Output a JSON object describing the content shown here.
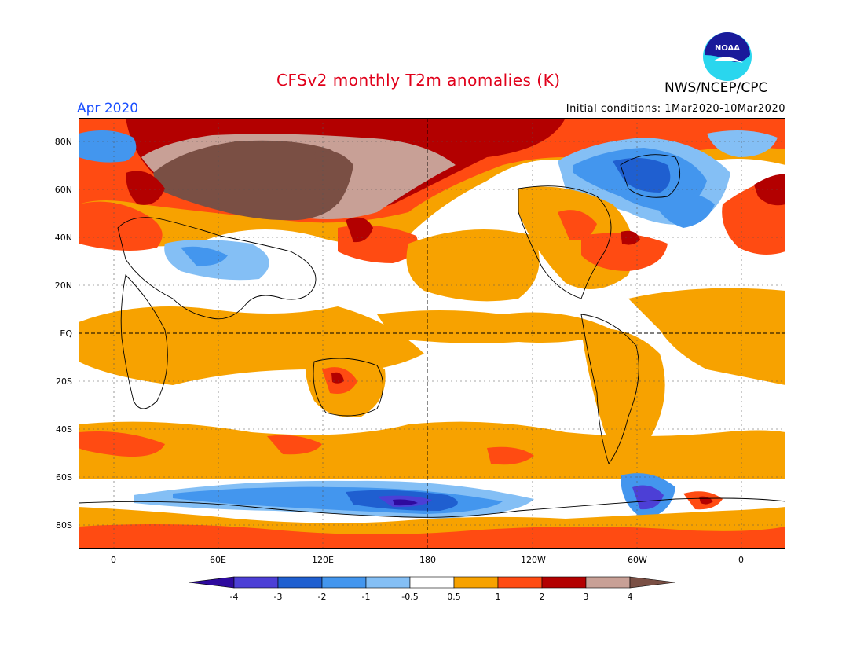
{
  "title": "CFSv2 monthly T2m anomalies (K)",
  "month": "Apr 2020",
  "agency": "NWS/NCEP/CPC",
  "logo_text": "NOAA",
  "initial_conditions": "Initial conditions: 1Mar2020-10Mar2020",
  "lat_labels": [
    "80N",
    "60N",
    "40N",
    "20N",
    "EQ",
    "20S",
    "40S",
    "60S",
    "80S"
  ],
  "lon_labels": [
    "0",
    "60E",
    "120E",
    "180",
    "120W",
    "60W",
    "0"
  ],
  "colorbar_labels": [
    "-4",
    "-3",
    "-2",
    "-1",
    "-0.5",
    "0.5",
    "1",
    "2",
    "3",
    "4"
  ],
  "colors": {
    "lt_neg4": "#2e0a9e",
    "neg4_neg3": "#4c3fd6",
    "neg3_neg2": "#1f5fd0",
    "neg2_neg1": "#4396ee",
    "neg1_neg05": "#84bff5",
    "neutral": "#ffffff",
    "p05_1": "#f7a200",
    "p1_2": "#ff4b12",
    "p2_3": "#b30000",
    "p3_4": "#c8a096",
    "gt4": "#7a4f44",
    "title": "#e0001a",
    "month": "#1a4fff"
  }
}
